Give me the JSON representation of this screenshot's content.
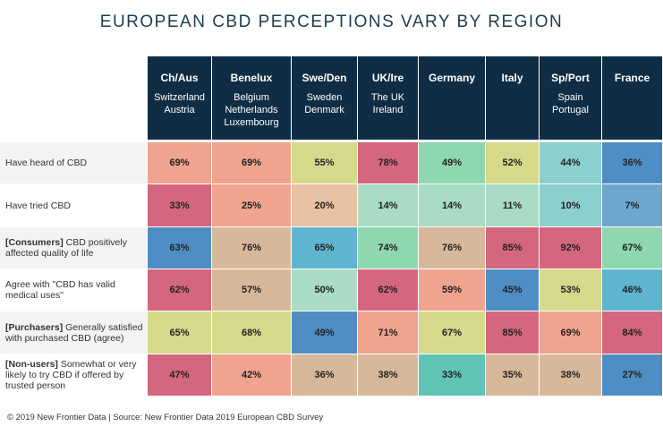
{
  "title": "EUROPEAN CBD PERCEPTIONS VARY BY REGION",
  "footer": "© 2019  New Frontier Data | Source:  New Frontier Data 2019 European CBD Survey",
  "chart_data": {
    "type": "table",
    "columns": [
      {
        "code": "Ch/Aus",
        "countries": "Switzerland\nAustria"
      },
      {
        "code": "Benelux",
        "countries": "Belgium\nNetherlands\nLuxembourg"
      },
      {
        "code": "Swe/Den",
        "countries": "Sweden\nDenmark"
      },
      {
        "code": "UK/Ire",
        "countries": "The UK\nIreland"
      },
      {
        "code": "Germany",
        "countries": ""
      },
      {
        "code": "Italy",
        "countries": ""
      },
      {
        "code": "Sp/Port",
        "countries": "Spain\nPortugal"
      },
      {
        "code": "France",
        "countries": ""
      }
    ],
    "rows": [
      {
        "prefix": "",
        "label": "Have heard of CBD",
        "values": [
          "69%",
          "69%",
          "55%",
          "78%",
          "49%",
          "52%",
          "44%",
          "36%"
        ]
      },
      {
        "prefix": "",
        "label": "Have tried CBD",
        "values": [
          "33%",
          "25%",
          "20%",
          "14%",
          "14%",
          "11%",
          "10%",
          "7%"
        ]
      },
      {
        "prefix": "[Consumers]",
        "label": " CBD positively affected quality of life",
        "values": [
          "63%",
          "76%",
          "65%",
          "74%",
          "76%",
          "85%",
          "92%",
          "67%"
        ]
      },
      {
        "prefix": "",
        "label": "Agree with \"CBD has valid medical uses\"",
        "values": [
          "62%",
          "57%",
          "50%",
          "62%",
          "59%",
          "45%",
          "53%",
          "46%"
        ]
      },
      {
        "prefix": "[Purchasers]",
        "label": " Generally satisfied with purchased CBD (agree)",
        "values": [
          "65%",
          "68%",
          "49%",
          "71%",
          "67%",
          "85%",
          "69%",
          "84%"
        ]
      },
      {
        "prefix": "[Non-users]",
        "label": " Somewhat or very likely to try CBD if offered by trusted person",
        "values": [
          "47%",
          "42%",
          "36%",
          "38%",
          "33%",
          "35%",
          "38%",
          "27%"
        ]
      }
    ],
    "cell_colors": [
      [
        "#f0a38e",
        "#f0a38e",
        "#d6d98a",
        "#d4667e",
        "#8fd7ae",
        "#d6d98a",
        "#8ccfcf",
        "#4f8ec4"
      ],
      [
        "#d4667e",
        "#f0a38e",
        "#e8c0a2",
        "#a8dcc4",
        "#a8dcc4",
        "#a8dcc4",
        "#8ccfcf",
        "#6fa6cf"
      ],
      [
        "#4f8ec4",
        "#d8b89a",
        "#5fb4cf",
        "#8fd7ae",
        "#d8b89a",
        "#d4667e",
        "#d4667e",
        "#8fd7ae"
      ],
      [
        "#d4667e",
        "#d8b89a",
        "#a8dcc4",
        "#d4667e",
        "#f0a38e",
        "#4f8ec4",
        "#d6d98a",
        "#5fb4cf"
      ],
      [
        "#d6d98a",
        "#d6d98a",
        "#4f8ec4",
        "#f0a38e",
        "#d6d98a",
        "#d4667e",
        "#f0a38e",
        "#d4667e"
      ],
      [
        "#d4667e",
        "#f0a38e",
        "#d8b89a",
        "#d8b89a",
        "#5fc4b4",
        "#d8b89a",
        "#d8b89a",
        "#4f8ec4"
      ]
    ],
    "row_label_background": [
      "#f2f3f4",
      "#ffffff",
      "#f2f3f4",
      "#ffffff",
      "#f2f3f4",
      "#ffffff"
    ],
    "header_color": "#0f2d44"
  }
}
